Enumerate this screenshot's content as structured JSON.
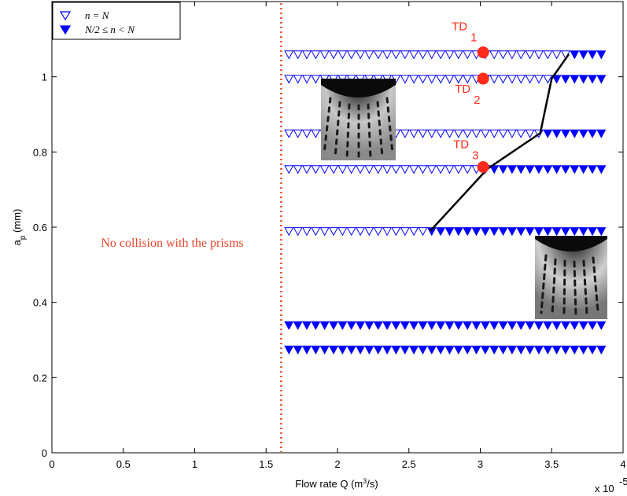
{
  "chart_data": {
    "type": "scatter",
    "xlabel": "Flow rate Q (m³/s)",
    "ylabel": "a_p (mm)",
    "x_exponent_label": "x 10",
    "x_exponent_power": "-5",
    "xlim": [
      0,
      4
    ],
    "ylim": [
      0,
      1.2
    ],
    "xticks": [
      "0",
      "0.5",
      "1",
      "1.5",
      "2",
      "2.5",
      "3",
      "3.5",
      "4"
    ],
    "yticks": [
      "0",
      "0.2",
      "0.4",
      "0.6",
      "0.8",
      "1"
    ],
    "legend": {
      "position": "top-left",
      "entries": [
        {
          "label": "n = N",
          "marker": "open-triangle-down"
        },
        {
          "label": "N/2 ≤ n < N",
          "marker": "filled-triangle-down"
        }
      ]
    },
    "threshold_line": {
      "x": 1.6,
      "style": "dotted",
      "color": "#e8452a"
    },
    "threshold_annotation": "No collision with the prisms",
    "rows": [
      {
        "y": 1.06,
        "x_start": 1.6,
        "x_transition": 3.62,
        "x_end": 3.9
      },
      {
        "y": 0.995,
        "x_start": 1.6,
        "x_transition": 3.5,
        "x_end": 3.9
      },
      {
        "y": 0.85,
        "x_start": 1.6,
        "x_transition": 3.42,
        "x_end": 3.9
      },
      {
        "y": 0.755,
        "x_start": 1.6,
        "x_transition": 3.05,
        "x_end": 3.9
      },
      {
        "y": 0.59,
        "x_start": 1.6,
        "x_transition": 2.65,
        "x_end": 3.9
      },
      {
        "y": 0.34,
        "x_start": 1.6,
        "x_transition": 1.6,
        "x_end": 3.9
      },
      {
        "y": 0.275,
        "x_start": 1.6,
        "x_transition": 1.6,
        "x_end": 3.9
      }
    ],
    "boundary_curve": [
      [
        2.65,
        0.59
      ],
      [
        3.05,
        0.755
      ],
      [
        3.42,
        0.85
      ],
      [
        3.5,
        0.995
      ],
      [
        3.62,
        1.06
      ]
    ],
    "highlighted_points": [
      {
        "label": "TD",
        "index": "1",
        "x": 3.02,
        "y": 1.065
      },
      {
        "label": "TD",
        "index": "2",
        "x": 3.02,
        "y": 0.995
      },
      {
        "label": "TD",
        "index": "3",
        "x": 3.02,
        "y": 0.76
      }
    ],
    "colors": {
      "markers": "#0000ff",
      "threshold": "#e8452a",
      "td_points": "#ff2a1a",
      "curve": "#000000"
    }
  }
}
